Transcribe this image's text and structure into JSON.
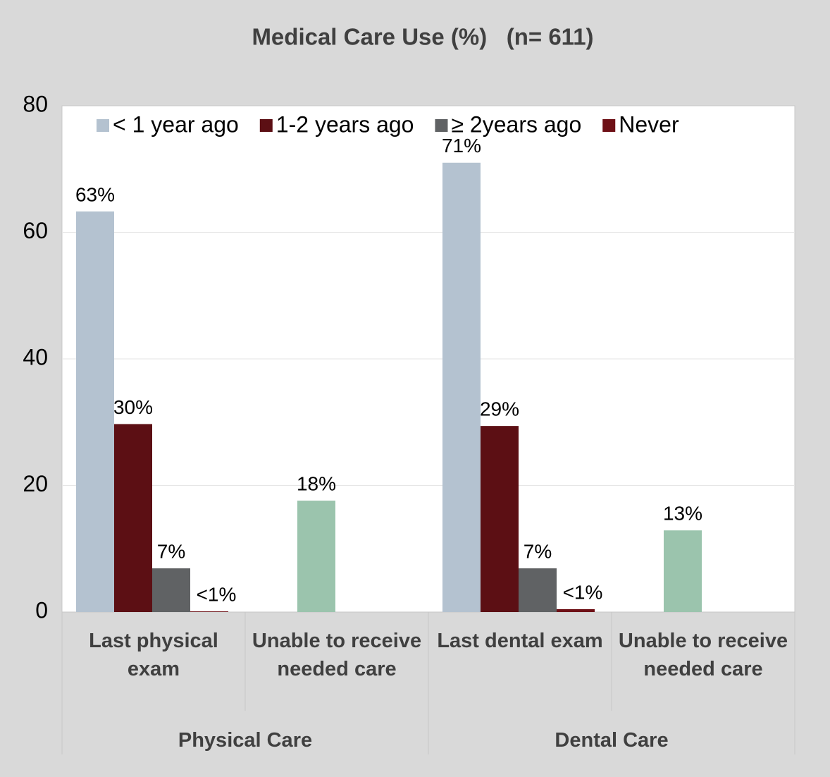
{
  "chart_data": {
    "type": "bar",
    "title": "Medical Care Use (%)   (n= 611)",
    "categories": [
      "Last physical exam",
      "Unable to receive needed care",
      "Last dental exam",
      "Unable to receive needed care"
    ],
    "groups": [
      "Physical Care",
      "Dental Care"
    ],
    "series": [
      {
        "name": "< 1 year ago",
        "color": "#b4c2d0",
        "values": [
          63.3,
          null,
          71,
          null
        ],
        "value_labels": [
          "63%",
          null,
          "71%",
          null
        ]
      },
      {
        "name": "1-2 years ago",
        "color": "#5c0f14",
        "values": [
          29.7,
          null,
          29.4,
          null
        ],
        "value_labels": [
          "30%",
          null,
          "29%",
          null
        ]
      },
      {
        "name": "≥ 2years ago",
        "color": "#606264",
        "values": [
          6.9,
          null,
          6.9,
          null
        ],
        "value_labels": [
          "7%",
          null,
          "7%",
          null
        ]
      },
      {
        "name": "Never",
        "color": "#6e1016",
        "values": [
          0.1,
          null,
          0.45,
          null
        ],
        "value_labels": [
          "<1%",
          null,
          "<1%",
          null
        ]
      },
      {
        "color": "#9bc4ad",
        "values": [
          null,
          17.6,
          null,
          12.9
        ],
        "value_labels": [
          null,
          "18%",
          null,
          "13%"
        ]
      }
    ],
    "ylim": [
      0,
      80
    ],
    "yticks": [
      0,
      20,
      40,
      60,
      80
    ],
    "grid": true
  }
}
